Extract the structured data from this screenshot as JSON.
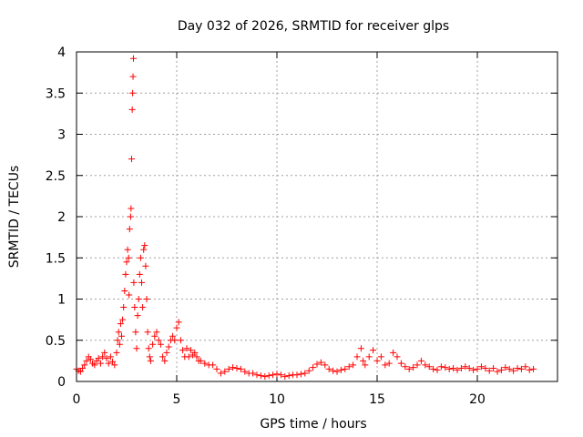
{
  "chart_data": {
    "type": "scatter",
    "title": "Day 032 of 2026, SRMTID for receiver glps",
    "xlabel": "GPS time / hours",
    "ylabel": "SRMTID / TECUs",
    "xlim": [
      0,
      24
    ],
    "ylim": [
      0,
      4
    ],
    "xticks": [
      {
        "value": 0,
        "label": "0"
      },
      {
        "value": 5,
        "label": "5"
      },
      {
        "value": 10,
        "label": "10"
      },
      {
        "value": 15,
        "label": "15"
      },
      {
        "value": 20,
        "label": "20"
      }
    ],
    "yticks": [
      {
        "value": 0,
        "label": "0"
      },
      {
        "value": 0.5,
        "label": "0.5"
      },
      {
        "value": 1,
        "label": "1"
      },
      {
        "value": 1.5,
        "label": "1.5"
      },
      {
        "value": 2,
        "label": "2"
      },
      {
        "value": 2.5,
        "label": "2.5"
      },
      {
        "value": 3,
        "label": "3"
      },
      {
        "value": 3.5,
        "label": "3.5"
      },
      {
        "value": 4,
        "label": "4"
      }
    ],
    "grid": true,
    "marker": "plus",
    "color": "#ff0000",
    "series": [
      {
        "name": "SRMTID",
        "points": [
          [
            0.0,
            0.15
          ],
          [
            0.1,
            0.13
          ],
          [
            0.2,
            0.12
          ],
          [
            0.3,
            0.16
          ],
          [
            0.4,
            0.2
          ],
          [
            0.5,
            0.25
          ],
          [
            0.6,
            0.3
          ],
          [
            0.7,
            0.27
          ],
          [
            0.8,
            0.22
          ],
          [
            0.9,
            0.2
          ],
          [
            1.0,
            0.25
          ],
          [
            1.1,
            0.28
          ],
          [
            1.2,
            0.22
          ],
          [
            1.3,
            0.3
          ],
          [
            1.4,
            0.35
          ],
          [
            1.5,
            0.28
          ],
          [
            1.6,
            0.22
          ],
          [
            1.7,
            0.3
          ],
          [
            1.8,
            0.24
          ],
          [
            1.9,
            0.2
          ],
          [
            2.0,
            0.35
          ],
          [
            2.05,
            0.5
          ],
          [
            2.1,
            0.6
          ],
          [
            2.15,
            0.45
          ],
          [
            2.2,
            0.7
          ],
          [
            2.25,
            0.55
          ],
          [
            2.3,
            0.75
          ],
          [
            2.35,
            0.9
          ],
          [
            2.4,
            1.1
          ],
          [
            2.45,
            1.3
          ],
          [
            2.5,
            1.45
          ],
          [
            2.55,
            1.6
          ],
          [
            2.6,
            1.5
          ],
          [
            2.62,
            1.05
          ],
          [
            2.65,
            1.85
          ],
          [
            2.7,
            2.0
          ],
          [
            2.72,
            2.1
          ],
          [
            2.75,
            2.7
          ],
          [
            2.78,
            3.3
          ],
          [
            2.8,
            3.5
          ],
          [
            2.82,
            3.7
          ],
          [
            2.84,
            3.92
          ],
          [
            2.86,
            1.2
          ],
          [
            2.9,
            0.9
          ],
          [
            2.95,
            0.6
          ],
          [
            3.0,
            0.4
          ],
          [
            3.05,
            0.8
          ],
          [
            3.1,
            1.0
          ],
          [
            3.15,
            1.3
          ],
          [
            3.2,
            1.5
          ],
          [
            3.25,
            1.2
          ],
          [
            3.3,
            0.9
          ],
          [
            3.35,
            1.6
          ],
          [
            3.4,
            1.65
          ],
          [
            3.45,
            1.4
          ],
          [
            3.5,
            1.0
          ],
          [
            3.55,
            0.6
          ],
          [
            3.6,
            0.4
          ],
          [
            3.65,
            0.3
          ],
          [
            3.7,
            0.25
          ],
          [
            3.8,
            0.45
          ],
          [
            3.9,
            0.55
          ],
          [
            4.0,
            0.6
          ],
          [
            4.1,
            0.5
          ],
          [
            4.2,
            0.45
          ],
          [
            4.3,
            0.3
          ],
          [
            4.4,
            0.25
          ],
          [
            4.5,
            0.35
          ],
          [
            4.6,
            0.42
          ],
          [
            4.7,
            0.5
          ],
          [
            4.8,
            0.55
          ],
          [
            4.9,
            0.5
          ],
          [
            5.0,
            0.65
          ],
          [
            5.1,
            0.72
          ],
          [
            5.2,
            0.5
          ],
          [
            5.3,
            0.38
          ],
          [
            5.4,
            0.3
          ],
          [
            5.5,
            0.4
          ],
          [
            5.6,
            0.3
          ],
          [
            5.7,
            0.38
          ],
          [
            5.8,
            0.32
          ],
          [
            5.9,
            0.35
          ],
          [
            6.0,
            0.3
          ],
          [
            6.1,
            0.25
          ],
          [
            6.2,
            0.25
          ],
          [
            6.4,
            0.22
          ],
          [
            6.6,
            0.2
          ],
          [
            6.8,
            0.2
          ],
          [
            7.0,
            0.15
          ],
          [
            7.2,
            0.1
          ],
          [
            7.4,
            0.12
          ],
          [
            7.6,
            0.15
          ],
          [
            7.8,
            0.17
          ],
          [
            8.0,
            0.16
          ],
          [
            8.2,
            0.15
          ],
          [
            8.4,
            0.12
          ],
          [
            8.6,
            0.1
          ],
          [
            8.8,
            0.1
          ],
          [
            9.0,
            0.08
          ],
          [
            9.2,
            0.07
          ],
          [
            9.4,
            0.06
          ],
          [
            9.6,
            0.07
          ],
          [
            9.8,
            0.08
          ],
          [
            10.0,
            0.09
          ],
          [
            10.2,
            0.08
          ],
          [
            10.4,
            0.06
          ],
          [
            10.6,
            0.07
          ],
          [
            10.8,
            0.08
          ],
          [
            11.0,
            0.08
          ],
          [
            11.2,
            0.09
          ],
          [
            11.4,
            0.1
          ],
          [
            11.6,
            0.13
          ],
          [
            11.8,
            0.17
          ],
          [
            12.0,
            0.21
          ],
          [
            12.2,
            0.23
          ],
          [
            12.4,
            0.2
          ],
          [
            12.6,
            0.15
          ],
          [
            12.8,
            0.13
          ],
          [
            13.0,
            0.12
          ],
          [
            13.2,
            0.14
          ],
          [
            13.4,
            0.15
          ],
          [
            13.6,
            0.18
          ],
          [
            13.8,
            0.2
          ],
          [
            14.0,
            0.3
          ],
          [
            14.2,
            0.4
          ],
          [
            14.3,
            0.25
          ],
          [
            14.4,
            0.2
          ],
          [
            14.6,
            0.3
          ],
          [
            14.8,
            0.38
          ],
          [
            15.0,
            0.25
          ],
          [
            15.2,
            0.3
          ],
          [
            15.4,
            0.2
          ],
          [
            15.6,
            0.22
          ],
          [
            15.8,
            0.35
          ],
          [
            16.0,
            0.3
          ],
          [
            16.2,
            0.22
          ],
          [
            16.4,
            0.18
          ],
          [
            16.6,
            0.15
          ],
          [
            16.8,
            0.17
          ],
          [
            17.0,
            0.2
          ],
          [
            17.2,
            0.25
          ],
          [
            17.4,
            0.2
          ],
          [
            17.6,
            0.18
          ],
          [
            17.8,
            0.15
          ],
          [
            18.0,
            0.14
          ],
          [
            18.2,
            0.18
          ],
          [
            18.4,
            0.17
          ],
          [
            18.6,
            0.15
          ],
          [
            18.8,
            0.16
          ],
          [
            19.0,
            0.14
          ],
          [
            19.2,
            0.16
          ],
          [
            19.4,
            0.18
          ],
          [
            19.6,
            0.16
          ],
          [
            19.8,
            0.14
          ],
          [
            20.0,
            0.15
          ],
          [
            20.2,
            0.18
          ],
          [
            20.4,
            0.16
          ],
          [
            20.6,
            0.13
          ],
          [
            20.8,
            0.16
          ],
          [
            21.0,
            0.12
          ],
          [
            21.2,
            0.14
          ],
          [
            21.4,
            0.17
          ],
          [
            21.6,
            0.15
          ],
          [
            21.8,
            0.13
          ],
          [
            22.0,
            0.16
          ],
          [
            22.2,
            0.15
          ],
          [
            22.4,
            0.18
          ],
          [
            22.6,
            0.14
          ],
          [
            22.8,
            0.15
          ]
        ]
      }
    ]
  }
}
